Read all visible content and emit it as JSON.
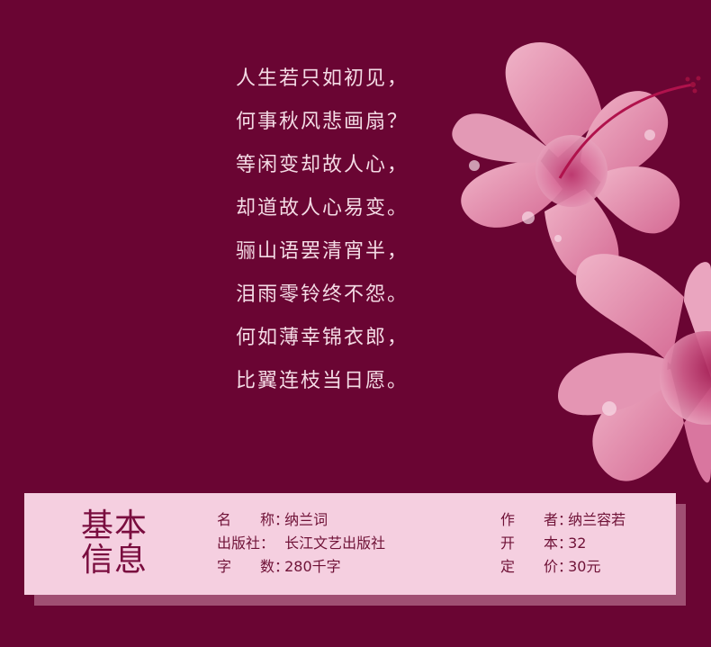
{
  "poem": {
    "stanza1": [
      "人生若只如初见，",
      "何事秋风悲画扇？",
      "等闲变却故人心，",
      "却道故人心易变。"
    ],
    "stanza2": [
      "骊山语罢清宵半，",
      "泪雨零铃终不怨。",
      "何如薄幸锦衣郎，",
      "比翼连枝当日愿。"
    ]
  },
  "info": {
    "title": "基本\n信息",
    "items": {
      "name_label": "名　　称：",
      "name_value": "纳兰词",
      "author_label": "作　　者：",
      "author_value": "纳兰容若",
      "publisher_label": "出版社：",
      "publisher_value": "长江文艺出版社",
      "format_label": "开　　本：",
      "format_value": "32",
      "words_label": "字　　数：",
      "words_value": "280千字",
      "price_label": "定　　价：",
      "price_value": "30元"
    }
  },
  "colors": {
    "background": "#6a0533",
    "poem_text": "#f4dbe5",
    "info_box": "#f5cfe0",
    "info_shadow": "#a04f73",
    "info_text": "#6f1237"
  }
}
